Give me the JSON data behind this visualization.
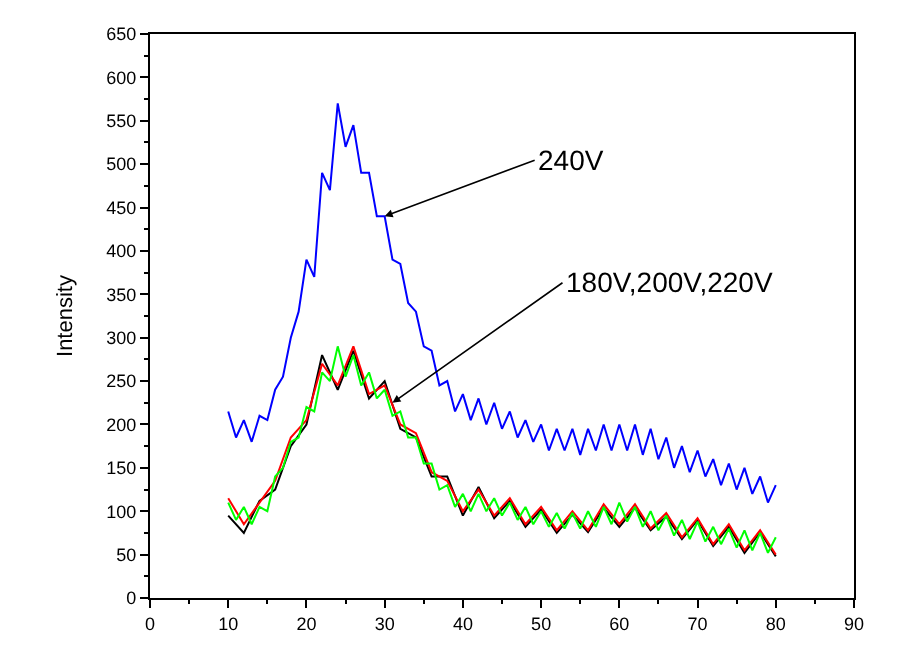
{
  "chart_data": {
    "type": "line",
    "ylabel": "Intensity",
    "xlim": [
      0,
      90
    ],
    "xticks": [
      0,
      10,
      20,
      30,
      40,
      50,
      60,
      70,
      80,
      90
    ],
    "ylim": [
      0,
      650
    ],
    "yticks": [
      0,
      50,
      100,
      150,
      200,
      250,
      300,
      350,
      400,
      450,
      500,
      550,
      600,
      650
    ],
    "grid": false,
    "marker": "none",
    "line_style": "solid",
    "annotations": [
      {
        "text": "240V",
        "x": 30,
        "y": 440
      },
      {
        "text": "180V,200V,220V",
        "x": 31,
        "y": 225
      }
    ],
    "series": [
      {
        "color": "#0000ff",
        "x": [
          10,
          11,
          12,
          13,
          14,
          15,
          16,
          17,
          18,
          19,
          20,
          21,
          22,
          23,
          24,
          25,
          26,
          27,
          28,
          29,
          30,
          31,
          32,
          33,
          34,
          35,
          36,
          37,
          38,
          39,
          40,
          41,
          42,
          43,
          44,
          45,
          46,
          47,
          48,
          49,
          50,
          51,
          52,
          53,
          54,
          55,
          56,
          57,
          58,
          59,
          60,
          61,
          62,
          63,
          64,
          65,
          66,
          67,
          68,
          69,
          70,
          71,
          72,
          73,
          74,
          75,
          76,
          77,
          78,
          79,
          80
        ],
        "values": [
          215,
          185,
          205,
          180,
          210,
          205,
          240,
          255,
          300,
          330,
          390,
          370,
          490,
          470,
          570,
          520,
          545,
          490,
          490,
          440,
          440,
          390,
          385,
          340,
          330,
          290,
          285,
          245,
          250,
          215,
          235,
          205,
          230,
          200,
          225,
          195,
          215,
          185,
          205,
          180,
          200,
          170,
          195,
          170,
          195,
          165,
          195,
          170,
          200,
          170,
          200,
          170,
          200,
          165,
          195,
          160,
          185,
          150,
          175,
          145,
          170,
          140,
          160,
          130,
          155,
          125,
          150,
          120,
          140,
          110,
          130
        ]
      },
      {
        "color": "#000000",
        "x": [
          10,
          12,
          14,
          16,
          18,
          20,
          22,
          24,
          26,
          28,
          30,
          32,
          34,
          36,
          38,
          40,
          42,
          44,
          46,
          48,
          50,
          52,
          54,
          56,
          58,
          60,
          62,
          64,
          66,
          68,
          70,
          72,
          74,
          76,
          78,
          80
        ],
        "values": [
          95,
          75,
          112,
          125,
          175,
          200,
          280,
          240,
          285,
          230,
          250,
          195,
          185,
          140,
          140,
          95,
          128,
          92,
          112,
          82,
          102,
          75,
          96,
          76,
          104,
          82,
          104,
          78,
          94,
          68,
          90,
          60,
          82,
          52,
          76,
          48
        ]
      },
      {
        "color": "#ff0000",
        "x": [
          10,
          12,
          14,
          16,
          18,
          20,
          22,
          24,
          26,
          28,
          30,
          32,
          34,
          36,
          38,
          40,
          42,
          44,
          46,
          48,
          50,
          52,
          54,
          56,
          58,
          60,
          62,
          64,
          66,
          68,
          70,
          72,
          74,
          76,
          78,
          80
        ],
        "values": [
          115,
          85,
          110,
          135,
          185,
          205,
          270,
          245,
          290,
          235,
          245,
          200,
          190,
          145,
          135,
          100,
          125,
          95,
          115,
          85,
          105,
          78,
          100,
          78,
          108,
          85,
          108,
          80,
          98,
          70,
          92,
          62,
          85,
          55,
          78,
          50
        ]
      },
      {
        "color": "#00ff00",
        "x": [
          10,
          11,
          12,
          13,
          14,
          15,
          16,
          17,
          18,
          19,
          20,
          21,
          22,
          23,
          24,
          25,
          26,
          27,
          28,
          29,
          30,
          31,
          32,
          33,
          34,
          35,
          36,
          37,
          38,
          39,
          40,
          41,
          42,
          43,
          44,
          45,
          46,
          47,
          48,
          49,
          50,
          51,
          52,
          53,
          54,
          55,
          56,
          57,
          58,
          59,
          60,
          61,
          62,
          63,
          64,
          65,
          66,
          67,
          68,
          69,
          70,
          71,
          72,
          73,
          74,
          75,
          76,
          77,
          78,
          79,
          80
        ],
        "values": [
          110,
          90,
          105,
          85,
          105,
          100,
          140,
          150,
          180,
          185,
          220,
          215,
          260,
          250,
          290,
          255,
          280,
          245,
          260,
          230,
          240,
          210,
          215,
          185,
          185,
          155,
          155,
          125,
          130,
          105,
          120,
          100,
          120,
          100,
          115,
          95,
          110,
          90,
          105,
          85,
          100,
          82,
          98,
          80,
          98,
          80,
          100,
          82,
          105,
          85,
          110,
          88,
          105,
          82,
          100,
          78,
          95,
          72,
          90,
          68,
          88,
          65,
          82,
          62,
          80,
          58,
          78,
          55,
          75,
          52,
          70
        ]
      }
    ]
  }
}
